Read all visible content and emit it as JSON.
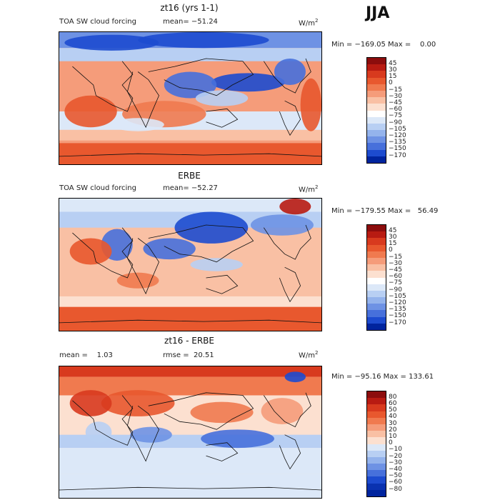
{
  "season": "JJA",
  "chart_data": [
    {
      "type": "heatmap",
      "title": "zt16 (yrs 1-1)",
      "subtitle": "TOA SW cloud forcing",
      "stat_label": "mean= −51.24",
      "units": "W/m",
      "units_sup": "2",
      "min_max": "Min = −169.05 Max =    0.00",
      "stats": {
        "mean": -51.24,
        "min": -169.05,
        "max": 0.0
      },
      "colorbar": {
        "levels": [
          "45",
          "30",
          "15",
          "0",
          "−15",
          "−30",
          "−45",
          "−60",
          "−75",
          "−90",
          "−105",
          "−120",
          "−135",
          "−150",
          "−170"
        ],
        "colors": [
          "#8c0d0d",
          "#b81b12",
          "#d83a1e",
          "#e8582e",
          "#f07a4f",
          "#f59c7a",
          "#f9c0a4",
          "#fce0d0",
          "#ffffff",
          "#dce8f8",
          "#b8cff3",
          "#94b3ec",
          "#6e92e4",
          "#4770db",
          "#1d4bcf",
          "#00249e"
        ]
      }
    },
    {
      "type": "heatmap",
      "title": "ERBE",
      "subtitle": "TOA SW cloud forcing",
      "stat_label": "mean= −52.27",
      "units": "W/m",
      "units_sup": "2",
      "min_max": "Min = −179.55 Max =   56.49",
      "stats": {
        "mean": -52.27,
        "min": -179.55,
        "max": 56.49
      },
      "colorbar": {
        "levels": [
          "45",
          "30",
          "15",
          "0",
          "−15",
          "−30",
          "−45",
          "−60",
          "−75",
          "−90",
          "−105",
          "−120",
          "−135",
          "−150",
          "−170"
        ],
        "colors": [
          "#8c0d0d",
          "#b81b12",
          "#d83a1e",
          "#e8582e",
          "#f07a4f",
          "#f59c7a",
          "#f9c0a4",
          "#fce0d0",
          "#ffffff",
          "#dce8f8",
          "#b8cff3",
          "#94b3ec",
          "#6e92e4",
          "#4770db",
          "#1d4bcf",
          "#00249e"
        ]
      }
    },
    {
      "type": "heatmap",
      "title": "zt16 - ERBE",
      "subtitle": "mean =    1.03",
      "stat_label": "rmse =  20.51",
      "units": "W/m",
      "units_sup": "2",
      "min_max": "Min = −95.16 Max = 133.61",
      "stats": {
        "mean": 1.03,
        "rmse": 20.51,
        "min": -95.16,
        "max": 133.61
      },
      "colorbar": {
        "levels": [
          "80",
          "60",
          "50",
          "40",
          "30",
          "20",
          "10",
          "0",
          "−10",
          "−20",
          "−30",
          "−40",
          "−50",
          "−60",
          "−80"
        ],
        "colors": [
          "#8c0d0d",
          "#b81b12",
          "#d83a1e",
          "#e8582e",
          "#f07a4f",
          "#f59c7a",
          "#f9c0a4",
          "#fce0d0",
          "#dce8f8",
          "#b8cff3",
          "#94b3ec",
          "#6e92e4",
          "#4770db",
          "#1d4bcf",
          "#0a32b0",
          "#00249e"
        ]
      }
    }
  ]
}
